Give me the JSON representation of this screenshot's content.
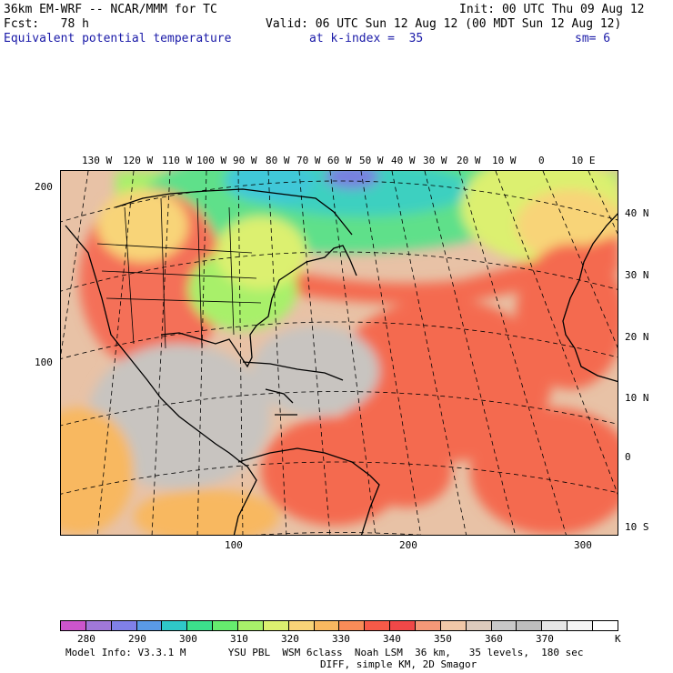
{
  "header": {
    "model": "36km EM-WRF -- NCAR/MMM for TC",
    "init": "Init: 00 UTC Thu 09 Aug 12",
    "fcst": "Fcst:   78 h",
    "valid": "Valid: 06 UTC Sun 12 Aug 12 (00 MDT Sun 12 Aug 12)",
    "field": "Equivalent potential temperature",
    "level": "at k-index =  35",
    "smooth": "sm= 6"
  },
  "map": {
    "top_lon_labels": [
      "130 W",
      "120 W",
      "110 W",
      "100 W",
      "90 W",
      "80 W",
      "70 W",
      "60 W",
      "50 W",
      "40 W",
      "30 W",
      "20 W",
      "10 W",
      "0",
      "10 E"
    ],
    "right_lat_labels": [
      "40 N",
      "30 N",
      "20 N",
      "10 N",
      "0",
      "10 S"
    ],
    "left_grid_labels": [
      "200",
      "100"
    ],
    "bottom_grid_labels": [
      "100",
      "200",
      "300"
    ]
  },
  "colorbar": {
    "colors": [
      "#cc55cc",
      "#a078d8",
      "#8080e8",
      "#5a9ae6",
      "#2fc8c8",
      "#3ce08c",
      "#66ec6e",
      "#a8f06a",
      "#dcf070",
      "#f8d478",
      "#f8b860",
      "#f88c58",
      "#f65a48",
      "#f04848",
      "#f49878",
      "#f0c8a8",
      "#dccabc",
      "#c8c8c8",
      "#bebebe",
      "#e6e6e6",
      "#f4f4f4",
      "#ffffff"
    ],
    "labels": [
      "280",
      "290",
      "300",
      "310",
      "320",
      "330",
      "340",
      "350",
      "360",
      "370",
      "K"
    ]
  },
  "footer": {
    "line1": "Model Info: V3.3.1 M       YSU PBL  WSM 6class  Noah LSM  36 km,   35 levels,  180 sec",
    "line2": "DIFF, simple KM, 2D Smagor"
  }
}
